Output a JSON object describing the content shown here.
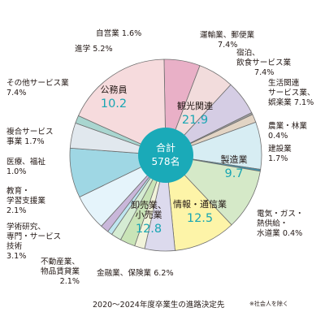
{
  "chart_data": {
    "type": "pie",
    "title": "",
    "center": {
      "line1": "合計",
      "line2": "578名"
    },
    "caption": "2020〜2024年度卒業生の進路決定先",
    "note": "※社会人を除く",
    "slices": [
      {
        "label": [
          "運輸業、郵便業"
        ],
        "value_text": "7.4%",
        "value": 7.4,
        "color": "#e9b0c7",
        "display": "outside"
      },
      {
        "label": [
          "宿泊、",
          "飲食サービス業"
        ],
        "value_text": "7.4%",
        "value": 7.4,
        "color": "#f2dcdc",
        "display": "outside"
      },
      {
        "label": [
          "生活関連",
          "サービス業、",
          "娯楽業"
        ],
        "value_text": "7.1%",
        "value": 7.1,
        "color": "#d5cde4",
        "display": "outside"
      },
      {
        "label": [
          "農業・林業"
        ],
        "value_text": "0.4%",
        "value": 0.4,
        "color": "#9f9f9f",
        "display": "outside"
      },
      {
        "label": [
          "建設業"
        ],
        "value_text": "1.7%",
        "value": 1.7,
        "color": "#e2d4c4",
        "display": "outside"
      },
      {
        "label": [
          "製造業"
        ],
        "value_text": "9.7",
        "value": 9.7,
        "color": "#d7edf3",
        "display": "inside"
      },
      {
        "label": [
          "電気・ガス・",
          "熱供給・",
          "水道業"
        ],
        "value_text": "0.4%",
        "value": 0.4,
        "color": "#3f92ad",
        "display": "outside"
      },
      {
        "label": [
          "情報・通信業"
        ],
        "value_text": "12.5",
        "value": 12.5,
        "color": "#d5e9c8",
        "display": "inside"
      },
      {
        "label": [
          "卸売業、",
          "小売業"
        ],
        "value_text": "12.8",
        "value": 12.8,
        "color": "#fdf4a8",
        "display": "inside"
      },
      {
        "label": [
          "金融業、保険業"
        ],
        "value_text": "6.2%",
        "value": 6.2,
        "color": "#dcdaed",
        "display": "outside"
      },
      {
        "label": [
          "不動産業、",
          "物品賃貸業"
        ],
        "value_text": "2.1%",
        "value": 2.1,
        "color": "#f1f3da",
        "display": "outside"
      },
      {
        "label": [
          "学術研究、",
          "専門・サービス",
          "技術"
        ],
        "value_text": "3.1%",
        "value": 3.1,
        "color": "#c9e4b7",
        "display": "outside"
      },
      {
        "label": [
          "教育・",
          "学習支援業"
        ],
        "value_text": "2.1%",
        "value": 2.1,
        "color": "#d5ecd3",
        "display": "outside"
      },
      {
        "label": [
          "医療、福祉"
        ],
        "value_text": "1.0%",
        "value": 1.0,
        "color": "#bfe6f0",
        "display": "outside"
      },
      {
        "label": [
          "複合サービス",
          "事業"
        ],
        "value_text": "1.7%",
        "value": 1.7,
        "color": "#c9b7da",
        "display": "outside"
      },
      {
        "label": [
          "その他サービス業"
        ],
        "value_text": "7.4%",
        "value": 7.4,
        "color": "#e5f4fb",
        "display": "outside"
      },
      {
        "label": [
          "公務員"
        ],
        "value_text": "10.2",
        "value": 10.2,
        "color": "#9fd7e4",
        "display": "inside"
      },
      {
        "label": [
          "進学"
        ],
        "value_text": "5.2%",
        "value": 5.2,
        "color": "#e1e8ee",
        "display": "outside"
      },
      {
        "label": [
          "自営業"
        ],
        "value_text": "1.6%",
        "value": 1.6,
        "color": "#a9d6d0",
        "display": "outside"
      },
      {
        "label": [
          "観光関連"
        ],
        "value_text": "21.9",
        "value": 21.9,
        "color": "#f6dbdd",
        "display": "inside"
      }
    ]
  }
}
